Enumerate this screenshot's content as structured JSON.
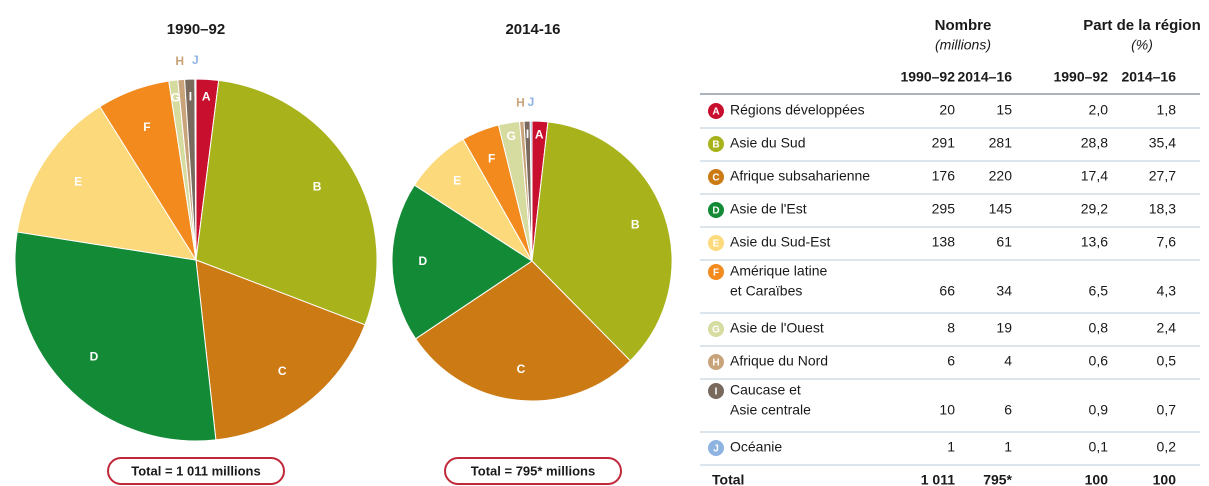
{
  "chart_data": [
    {
      "type": "pie",
      "title": "1990–92",
      "total_label": "Total = 1 011 millions",
      "categories": [
        "A",
        "B",
        "C",
        "D",
        "E",
        "F",
        "G",
        "H",
        "I",
        "J"
      ],
      "values": [
        2.0,
        28.8,
        17.4,
        29.2,
        13.6,
        6.5,
        0.8,
        0.6,
        0.9,
        0.1
      ],
      "colors": [
        "#c8102e",
        "#a8b31c",
        "#cc7a14",
        "#138a36",
        "#fcd97a",
        "#f28a1e",
        "#d6dba0",
        "#c9a47a",
        "#7a6a5e",
        "#8fb3e0"
      ]
    },
    {
      "type": "pie",
      "title": "2014-16",
      "total_label": "Total = 795* millions",
      "categories": [
        "A",
        "B",
        "C",
        "D",
        "E",
        "F",
        "G",
        "H",
        "I",
        "J"
      ],
      "values": [
        1.8,
        35.4,
        27.7,
        18.3,
        7.6,
        4.3,
        2.4,
        0.5,
        0.7,
        0.2
      ],
      "colors": [
        "#c8102e",
        "#a8b31c",
        "#cc7a14",
        "#138a36",
        "#fcd97a",
        "#f28a1e",
        "#d6dba0",
        "#c9a47a",
        "#7a6a5e",
        "#8fb3e0"
      ]
    }
  ],
  "table": {
    "headers": [
      {
        "title": "Nombre",
        "subtitle": "(millions)"
      },
      {
        "title": "Part de la région",
        "subtitle": "(%)"
      }
    ],
    "columns": [
      "1990–92",
      "2014–16",
      "1990–92",
      "2014–16"
    ],
    "rows": [
      {
        "name": [
          "Régions développées"
        ],
        "cells": [
          "20",
          "15",
          "2,0",
          "1,8"
        ]
      },
      {
        "name": [
          "Asie du Sud"
        ],
        "cells": [
          "291",
          "281",
          "28,8",
          "35,4"
        ]
      },
      {
        "name": [
          "Afrique subsaharienne"
        ],
        "cells": [
          "176",
          "220",
          "17,4",
          "27,7"
        ]
      },
      {
        "name": [
          "Asie de l'Est"
        ],
        "cells": [
          "295",
          "145",
          "29,2",
          "18,3"
        ]
      },
      {
        "name": [
          "Asie du Sud-Est"
        ],
        "cells": [
          "138",
          "61",
          "13,6",
          "7,6"
        ]
      },
      {
        "name": [
          "Amérique latine",
          "et Caraïbes"
        ],
        "cells": [
          "66",
          "34",
          "6,5",
          "4,3"
        ]
      },
      {
        "name": [
          "Asie de l'Ouest"
        ],
        "cells": [
          "8",
          "19",
          "0,8",
          "2,4"
        ]
      },
      {
        "name": [
          "Afrique du Nord"
        ],
        "cells": [
          "6",
          "4",
          "0,6",
          "0,5"
        ]
      },
      {
        "name": [
          "Caucase et",
          "Asie centrale"
        ],
        "cells": [
          "10",
          "6",
          "0,9",
          "0,7"
        ]
      },
      {
        "name": [
          "Océanie"
        ],
        "cells": [
          "1",
          "1",
          "0,1",
          "0,2"
        ]
      }
    ],
    "total": {
      "name": "Total",
      "cells": [
        "1 011",
        "795*",
        "100",
        "100"
      ]
    }
  }
}
